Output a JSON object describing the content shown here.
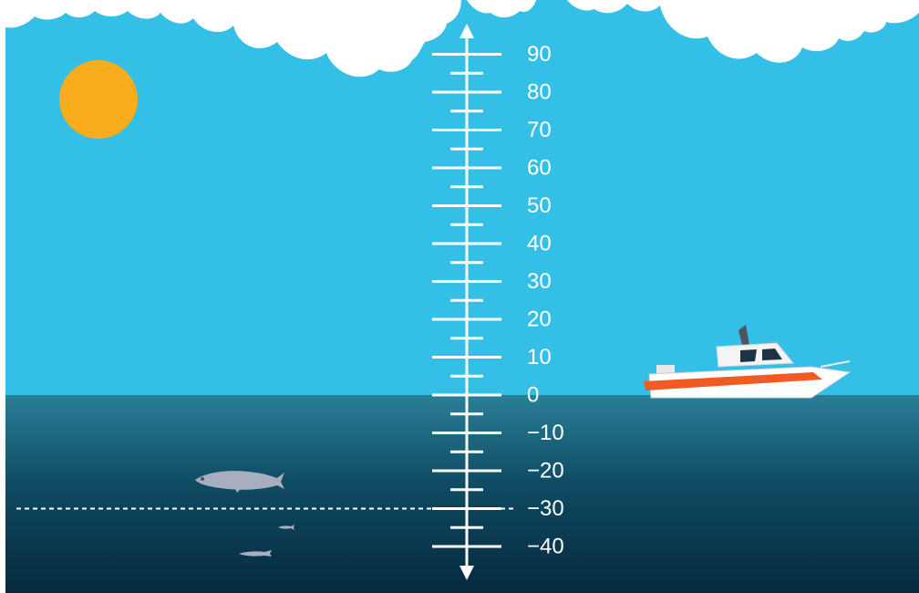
{
  "scale": {
    "labels": [
      "90",
      "80",
      "70",
      "60",
      "50",
      "40",
      "30",
      "20",
      "10",
      "0",
      "−10",
      "−20",
      "−30",
      "−40"
    ],
    "major_values": [
      90,
      80,
      70,
      60,
      50,
      40,
      30,
      20,
      10,
      0,
      -10,
      -20,
      -30,
      -40
    ],
    "minor_values": [
      85,
      75,
      65,
      55,
      45,
      35,
      25,
      15,
      5,
      -5,
      -15,
      -25,
      -35
    ],
    "marked_level": -30,
    "line_color": "#ffffff"
  },
  "scene": {
    "sky_color": "#34bfe6",
    "sea_top_color": "#2a7f98",
    "sea_bottom_color": "#06293d",
    "sun_color": "#f9ad1d",
    "boat_stripe_color": "#f15a22",
    "fish_color": "#a7aebd"
  },
  "icons": [
    "sun-icon",
    "cloud-icon",
    "boat-icon",
    "fish-icon"
  ]
}
